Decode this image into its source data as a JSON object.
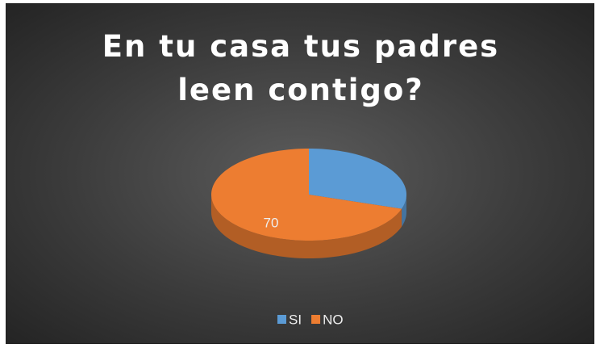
{
  "chart_data": {
    "type": "pie",
    "title": "En tu casa tus padres leen contigo?",
    "categories": [
      "SI",
      "NO"
    ],
    "values": [
      30,
      70
    ],
    "value_labels": [
      null,
      "70"
    ],
    "colors": [
      "#5b9bd5",
      "#ed7d31"
    ],
    "legend": "bottom"
  }
}
